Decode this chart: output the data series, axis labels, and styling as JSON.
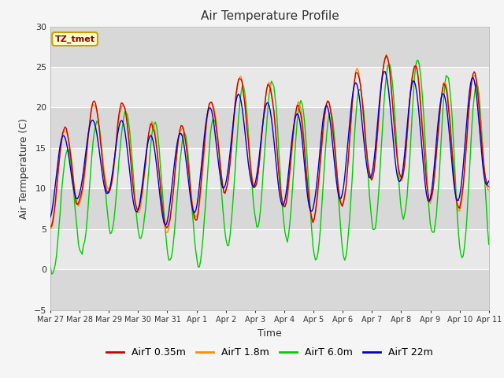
{
  "title": "Air Temperature Profile",
  "xlabel": "Time",
  "ylabel": "Air Termperature (C)",
  "ylim": [
    -5,
    30
  ],
  "background_color": "#f5f5f5",
  "plot_bg_color": "#e8e8e8",
  "grid_color": "#ffffff",
  "annotation_text": "TZ_tmet",
  "annotation_bg": "#ffffcc",
  "annotation_border": "#c8a000",
  "annotation_text_color": "#8b0000",
  "x_tick_labels": [
    "Mar 27",
    "Mar 28",
    "Mar 29",
    "Mar 30",
    "Mar 31",
    "Apr 1",
    "Apr 2",
    "Apr 3",
    "Apr 4",
    "Apr 5",
    "Apr 6",
    "Apr 7",
    "Apr 8",
    "Apr 9",
    "Apr 10",
    "Apr 11"
  ],
  "colors": {
    "AirT 0.35m": "#cc0000",
    "AirT 1.8m": "#ff8c00",
    "AirT 6.0m": "#00cc00",
    "AirT 22m": "#0000cc"
  },
  "line_width": 1.0,
  "figsize": [
    6.4,
    4.8
  ],
  "dpi": 100
}
